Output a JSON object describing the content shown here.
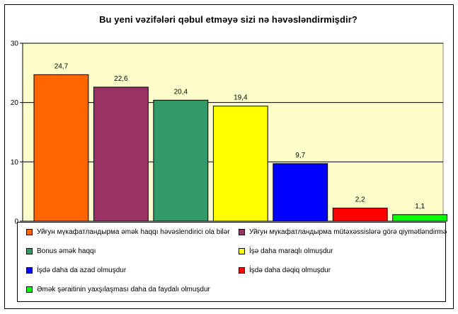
{
  "chart_data": {
    "type": "bar",
    "title": "Bu yeni vəzifələri qəbul etməyə sizi nə həvəsləndirmişdir?",
    "ylim": [
      0,
      30
    ],
    "yticks": [
      0,
      10,
      20,
      30
    ],
    "grid": true,
    "legend_placement": "bottom",
    "series": [
      {
        "name": "Уйғун мүкафатландырма əmək haqqı həvəslendirici ola bilər",
        "value": 24.7,
        "color": "#FF6600"
      },
      {
        "name": "Уйғун мүкафатландырма mütəxəssislərə görə qiymətləndirmə",
        "value": 22.6,
        "color": "#993366"
      },
      {
        "name": "Bonus əmək haqqı",
        "value": 20.4,
        "color": "#339966"
      },
      {
        "name": "İşə daha maraqlı olmuşdur",
        "value": 19.4,
        "color": "#FFFF00"
      },
      {
        "name": "İşdə daha da azad olmuşdur",
        "value": 9.7,
        "color": "#0000FF"
      },
      {
        "name": "İşdə daha dəqiq olmuşdur",
        "value": 2.2,
        "color": "#FF0000"
      },
      {
        "name": "Əmək şəraitinin yaxşılaşması daha da faydalı olmuşdur",
        "value": 1.1,
        "color": "#00FF00"
      }
    ],
    "plot_background": "#FFFFCC"
  }
}
